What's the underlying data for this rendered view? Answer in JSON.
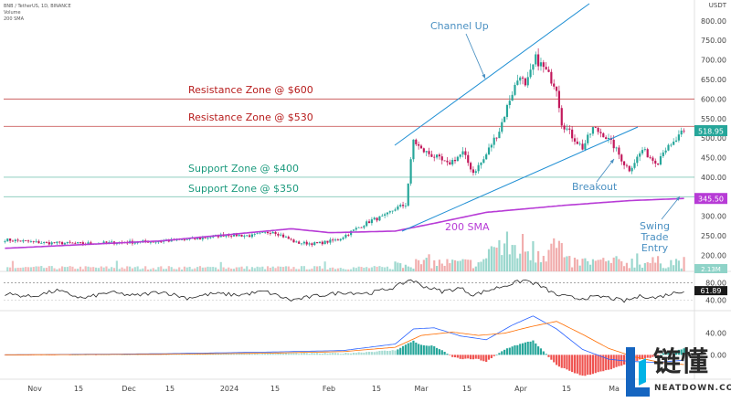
{
  "header": {
    "symbol_line": "BNB / TetherUS, 1D, BINANCE",
    "sub1": "Volume",
    "sub2": "200 SMA"
  },
  "axis": {
    "currency": "USDT",
    "ticks": [
      {
        "label": "800.00",
        "value": 800
      },
      {
        "label": "750.00",
        "value": 750
      },
      {
        "label": "700.00",
        "value": 700
      },
      {
        "label": "650.00",
        "value": 650
      },
      {
        "label": "600.00",
        "value": 600
      },
      {
        "label": "550.00",
        "value": 550
      },
      {
        "label": "500.00",
        "value": 500
      },
      {
        "label": "450.00",
        "value": 450
      },
      {
        "label": "400.00",
        "value": 400
      },
      {
        "label": "350.00",
        "value": 350
      },
      {
        "label": "300.00",
        "value": 300
      },
      {
        "label": "250.00",
        "value": 250
      },
      {
        "label": "200.00",
        "value": 200
      }
    ],
    "price_badge": "518.95",
    "sma_badge": "345.50",
    "volume_badge": "2.13M"
  },
  "rsi": {
    "ticks": [
      {
        "label": "80.00",
        "value": 80
      },
      {
        "label": "40.00",
        "value": 40
      }
    ],
    "badge": "61.89"
  },
  "macd": {
    "ticks": [
      {
        "label": "40.00",
        "value": 40
      },
      {
        "label": "0.00",
        "value": 0
      }
    ]
  },
  "time_axis": [
    "Nov",
    "15",
    "Dec",
    "15",
    "2024",
    "15",
    "Feb",
    "15",
    "Mar",
    "15",
    "Apr",
    "15",
    "Ma"
  ],
  "annotations": {
    "channel_up": "Channel Up",
    "resistance_600": "Resistance Zone @ $600",
    "resistance_530": "Resistance Zone @ $530",
    "support_400": "Support Zone @ $400",
    "support_350": "Support Zone @ $350",
    "breakout": "Breakout",
    "sma_label": "200 SMA",
    "swing_line1": "Swing",
    "swing_line2": "Trade",
    "swing_line3": "Entry"
  },
  "watermark": {
    "chinese": "链懂",
    "english": "NEATDOWN.COM"
  },
  "colors": {
    "up": "#26a69a",
    "down": "#c2185b",
    "resistance": "#b71c1c",
    "support": "#1b9a7d",
    "channel": "#1f8fd4",
    "sma": "#b73bd6",
    "annotation_blue": "#4a90c2"
  },
  "chart_data": {
    "type": "candlestick",
    "title": "",
    "series_name": "BNB / TetherUS",
    "ylim": [
      180,
      830
    ],
    "levels": [
      {
        "name": "Resistance Zone @ $600",
        "value": 600
      },
      {
        "name": "Resistance Zone @ $530",
        "value": 530
      },
      {
        "name": "Support Zone @ $400",
        "value": 400
      },
      {
        "name": "Support Zone @ $350",
        "value": 350
      }
    ],
    "close_anchors": [
      [
        0,
        240
      ],
      [
        15,
        232
      ],
      [
        30,
        230
      ],
      [
        45,
        233
      ],
      [
        60,
        236
      ],
      [
        75,
        243
      ],
      [
        85,
        253
      ],
      [
        95,
        250
      ],
      [
        103,
        262
      ],
      [
        112,
        232
      ],
      [
        120,
        230
      ],
      [
        128,
        240
      ],
      [
        135,
        268
      ],
      [
        141,
        290
      ],
      [
        146,
        300
      ],
      [
        150,
        320
      ],
      [
        154,
        330
      ],
      [
        157,
        495
      ],
      [
        160,
        470
      ],
      [
        166,
        450
      ],
      [
        170,
        432
      ],
      [
        176,
        462
      ],
      [
        180,
        412
      ],
      [
        184,
        445
      ],
      [
        187,
        485
      ],
      [
        190,
        520
      ],
      [
        194,
        600
      ],
      [
        198,
        665
      ],
      [
        200,
        628
      ],
      [
        204,
        703
      ],
      [
        207,
        680
      ],
      [
        212,
        630
      ],
      [
        214,
        540
      ],
      [
        218,
        505
      ],
      [
        222,
        475
      ],
      [
        226,
        525
      ],
      [
        230,
        510
      ],
      [
        234,
        480
      ],
      [
        238,
        435
      ],
      [
        240,
        420
      ],
      [
        245,
        470
      ],
      [
        249,
        445
      ],
      [
        251,
        440
      ],
      [
        253,
        470
      ],
      [
        256,
        478
      ],
      [
        258,
        495
      ],
      [
        261,
        519
      ]
    ],
    "sma_200": [
      [
        0,
        218
      ],
      [
        60,
        237
      ],
      [
        110,
        268
      ],
      [
        125,
        258
      ],
      [
        150,
        262
      ],
      [
        165,
        282
      ],
      [
        185,
        310
      ],
      [
        215,
        328
      ],
      [
        240,
        340
      ],
      [
        261,
        345.5
      ]
    ],
    "rsi_range": [
      20,
      100
    ],
    "rsi_anchors": [
      [
        0,
        55
      ],
      [
        10,
        48
      ],
      [
        20,
        62
      ],
      [
        30,
        44
      ],
      [
        40,
        58
      ],
      [
        50,
        50
      ],
      [
        60,
        60
      ],
      [
        70,
        45
      ],
      [
        80,
        55
      ],
      [
        90,
        52
      ],
      [
        100,
        60
      ],
      [
        110,
        40
      ],
      [
        120,
        50
      ],
      [
        130,
        58
      ],
      [
        140,
        56
      ],
      [
        150,
        70
      ],
      [
        156,
        88
      ],
      [
        160,
        74
      ],
      [
        168,
        60
      ],
      [
        175,
        68
      ],
      [
        180,
        52
      ],
      [
        190,
        70
      ],
      [
        196,
        80
      ],
      [
        200,
        86
      ],
      [
        205,
        75
      ],
      [
        212,
        52
      ],
      [
        220,
        44
      ],
      [
        230,
        48
      ],
      [
        238,
        38
      ],
      [
        245,
        50
      ],
      [
        250,
        45
      ],
      [
        256,
        55
      ],
      [
        261,
        62
      ]
    ],
    "macd_range": [
      -40,
      75
    ],
    "macd_line": [
      [
        0,
        0
      ],
      [
        60,
        2
      ],
      [
        100,
        5
      ],
      [
        130,
        8
      ],
      [
        150,
        20
      ],
      [
        157,
        48
      ],
      [
        165,
        50
      ],
      [
        175,
        35
      ],
      [
        185,
        28
      ],
      [
        195,
        55
      ],
      [
        203,
        72
      ],
      [
        212,
        48
      ],
      [
        222,
        10
      ],
      [
        232,
        -8
      ],
      [
        240,
        -12
      ],
      [
        250,
        -14
      ],
      [
        261,
        -10
      ]
    ],
    "signal_line": [
      [
        0,
        0
      ],
      [
        60,
        1
      ],
      [
        100,
        3
      ],
      [
        130,
        6
      ],
      [
        150,
        14
      ],
      [
        160,
        36
      ],
      [
        172,
        42
      ],
      [
        182,
        36
      ],
      [
        192,
        40
      ],
      [
        202,
        52
      ],
      [
        212,
        62
      ],
      [
        222,
        38
      ],
      [
        232,
        12
      ],
      [
        242,
        -4
      ],
      [
        252,
        -14
      ],
      [
        261,
        -18
      ]
    ]
  }
}
